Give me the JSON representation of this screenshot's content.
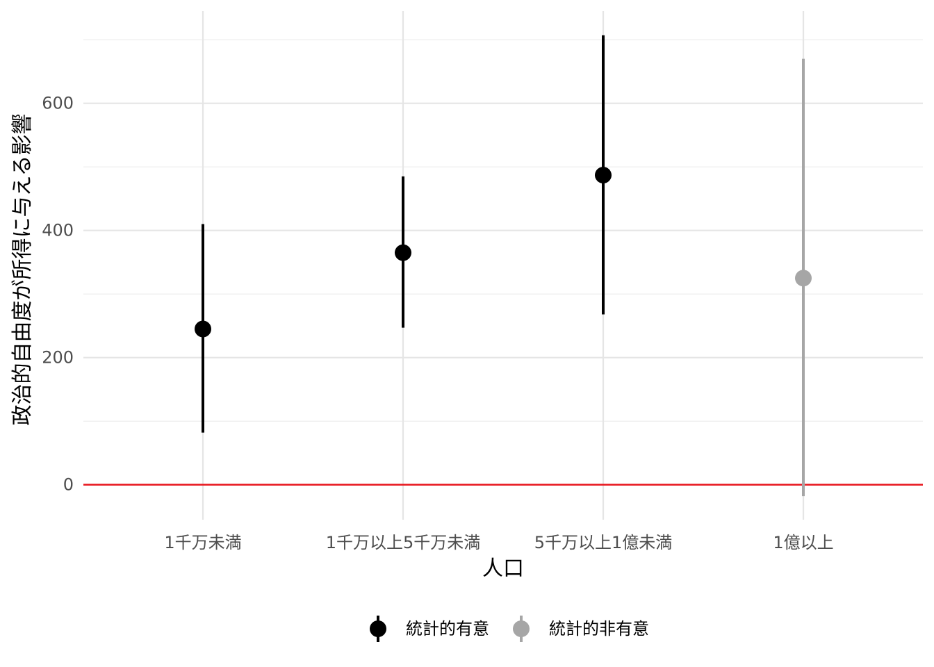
{
  "chart_data": {
    "type": "pointrange",
    "xlabel": "人口",
    "ylabel": "政治的自由度が所得に与える影響",
    "categories": [
      "1千万未満",
      "1千万以上5千万未満",
      "5千万以上1億未満",
      "1億以上"
    ],
    "estimates": [
      245,
      365,
      487,
      325
    ],
    "lower": [
      82,
      247,
      268,
      -18
    ],
    "upper": [
      410,
      485,
      707,
      670
    ],
    "significance": [
      "統計的有意",
      "統計的有意",
      "統計的有意",
      "統計的非有意"
    ],
    "ylim": [
      -55,
      745
    ],
    "yticks": [
      0,
      200,
      400,
      600
    ],
    "reference_line": {
      "y": 0,
      "color": "#e8141c"
    },
    "grid": true,
    "legend": {
      "position": "bottom",
      "items": [
        {
          "label": "統計的有意",
          "color": "#000000"
        },
        {
          "label": "統計的非有意",
          "color": "#a6a6a6"
        }
      ]
    }
  }
}
